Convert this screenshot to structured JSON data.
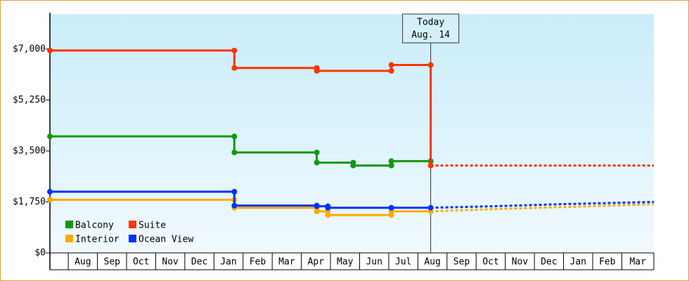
{
  "chart_data": {
    "type": "line",
    "step": true,
    "xlim": [
      -0.63,
      20.1
    ],
    "xticks": [
      {
        "value": 0,
        "label": "Aug"
      },
      {
        "value": 1,
        "label": "Sep"
      },
      {
        "value": 2,
        "label": "Oct"
      },
      {
        "value": 3,
        "label": "Nov"
      },
      {
        "value": 4,
        "label": "Dec"
      },
      {
        "value": 5,
        "label": "Jan"
      },
      {
        "value": 6,
        "label": "Feb"
      },
      {
        "value": 7,
        "label": "Mar"
      },
      {
        "value": 8,
        "label": "Apr"
      },
      {
        "value": 9,
        "label": "May"
      },
      {
        "value": 10,
        "label": "Jun"
      },
      {
        "value": 11,
        "label": "Jul"
      },
      {
        "value": 12,
        "label": "Aug"
      },
      {
        "value": 13,
        "label": "Sep"
      },
      {
        "value": 14,
        "label": "Oct"
      },
      {
        "value": 15,
        "label": "Nov"
      },
      {
        "value": 16,
        "label": "Dec"
      },
      {
        "value": 17,
        "label": "Jan"
      },
      {
        "value": 18,
        "label": "Feb"
      },
      {
        "value": 19,
        "label": "Mar"
      }
    ],
    "ylim": [
      0,
      8200
    ],
    "yticks": [
      {
        "value": 0,
        "label": "$0"
      },
      {
        "value": 1750,
        "label": "$1,750"
      },
      {
        "value": 3500,
        "label": "$3,500"
      },
      {
        "value": 5250,
        "label": "$5,250"
      },
      {
        "value": 7000,
        "label": "$7,000"
      }
    ],
    "legend": "lower left",
    "annotation": {
      "label": "Today",
      "date": "Aug. 14",
      "x": 12.44
    },
    "series": [
      {
        "name": "Balcony",
        "color": "#109910",
        "x": [
          -0.63,
          5.7,
          5.7,
          8.53,
          8.53,
          9.78,
          9.78,
          11.09,
          11.09,
          12.44
        ],
        "values": [
          4000,
          4000,
          3450,
          3450,
          3100,
          3100,
          3000,
          3000,
          3150,
          3150
        ]
      },
      {
        "name": "Suite",
        "color": "#ff3300",
        "x": [
          -0.63,
          5.7,
          5.7,
          8.53,
          8.53,
          11.09,
          11.09,
          12.44,
          12.44
        ],
        "values": [
          6950,
          6950,
          6350,
          6350,
          6250,
          6250,
          6450,
          6450,
          3000
        ],
        "forecast_x": [
          12.44,
          20.1
        ],
        "forecast_values": [
          3000,
          3000
        ]
      },
      {
        "name": "Interior",
        "color": "#ffaa00",
        "x": [
          -0.63,
          5.7,
          5.7,
          8.53,
          8.53,
          8.91,
          8.91,
          11.09,
          11.09,
          12.44
        ],
        "values": [
          1825,
          1825,
          1550,
          1550,
          1425,
          1425,
          1300,
          1300,
          1425,
          1425
        ],
        "forecast_x": [
          12.44,
          14.5,
          17,
          20.1
        ],
        "forecast_values": [
          1425,
          1500,
          1575,
          1675
        ]
      },
      {
        "name": "Ocean View",
        "color": "#0033ff",
        "x": [
          -0.63,
          5.7,
          5.7,
          8.53,
          8.53,
          8.91,
          8.91,
          11.09,
          11.09,
          12.44
        ],
        "values": [
          2100,
          2100,
          1625,
          1625,
          1600,
          1600,
          1550,
          1550,
          1550,
          1550
        ],
        "forecast_x": [
          12.44,
          14.5,
          17,
          20.1
        ],
        "forecast_values": [
          1550,
          1600,
          1675,
          1750
        ]
      }
    ]
  }
}
